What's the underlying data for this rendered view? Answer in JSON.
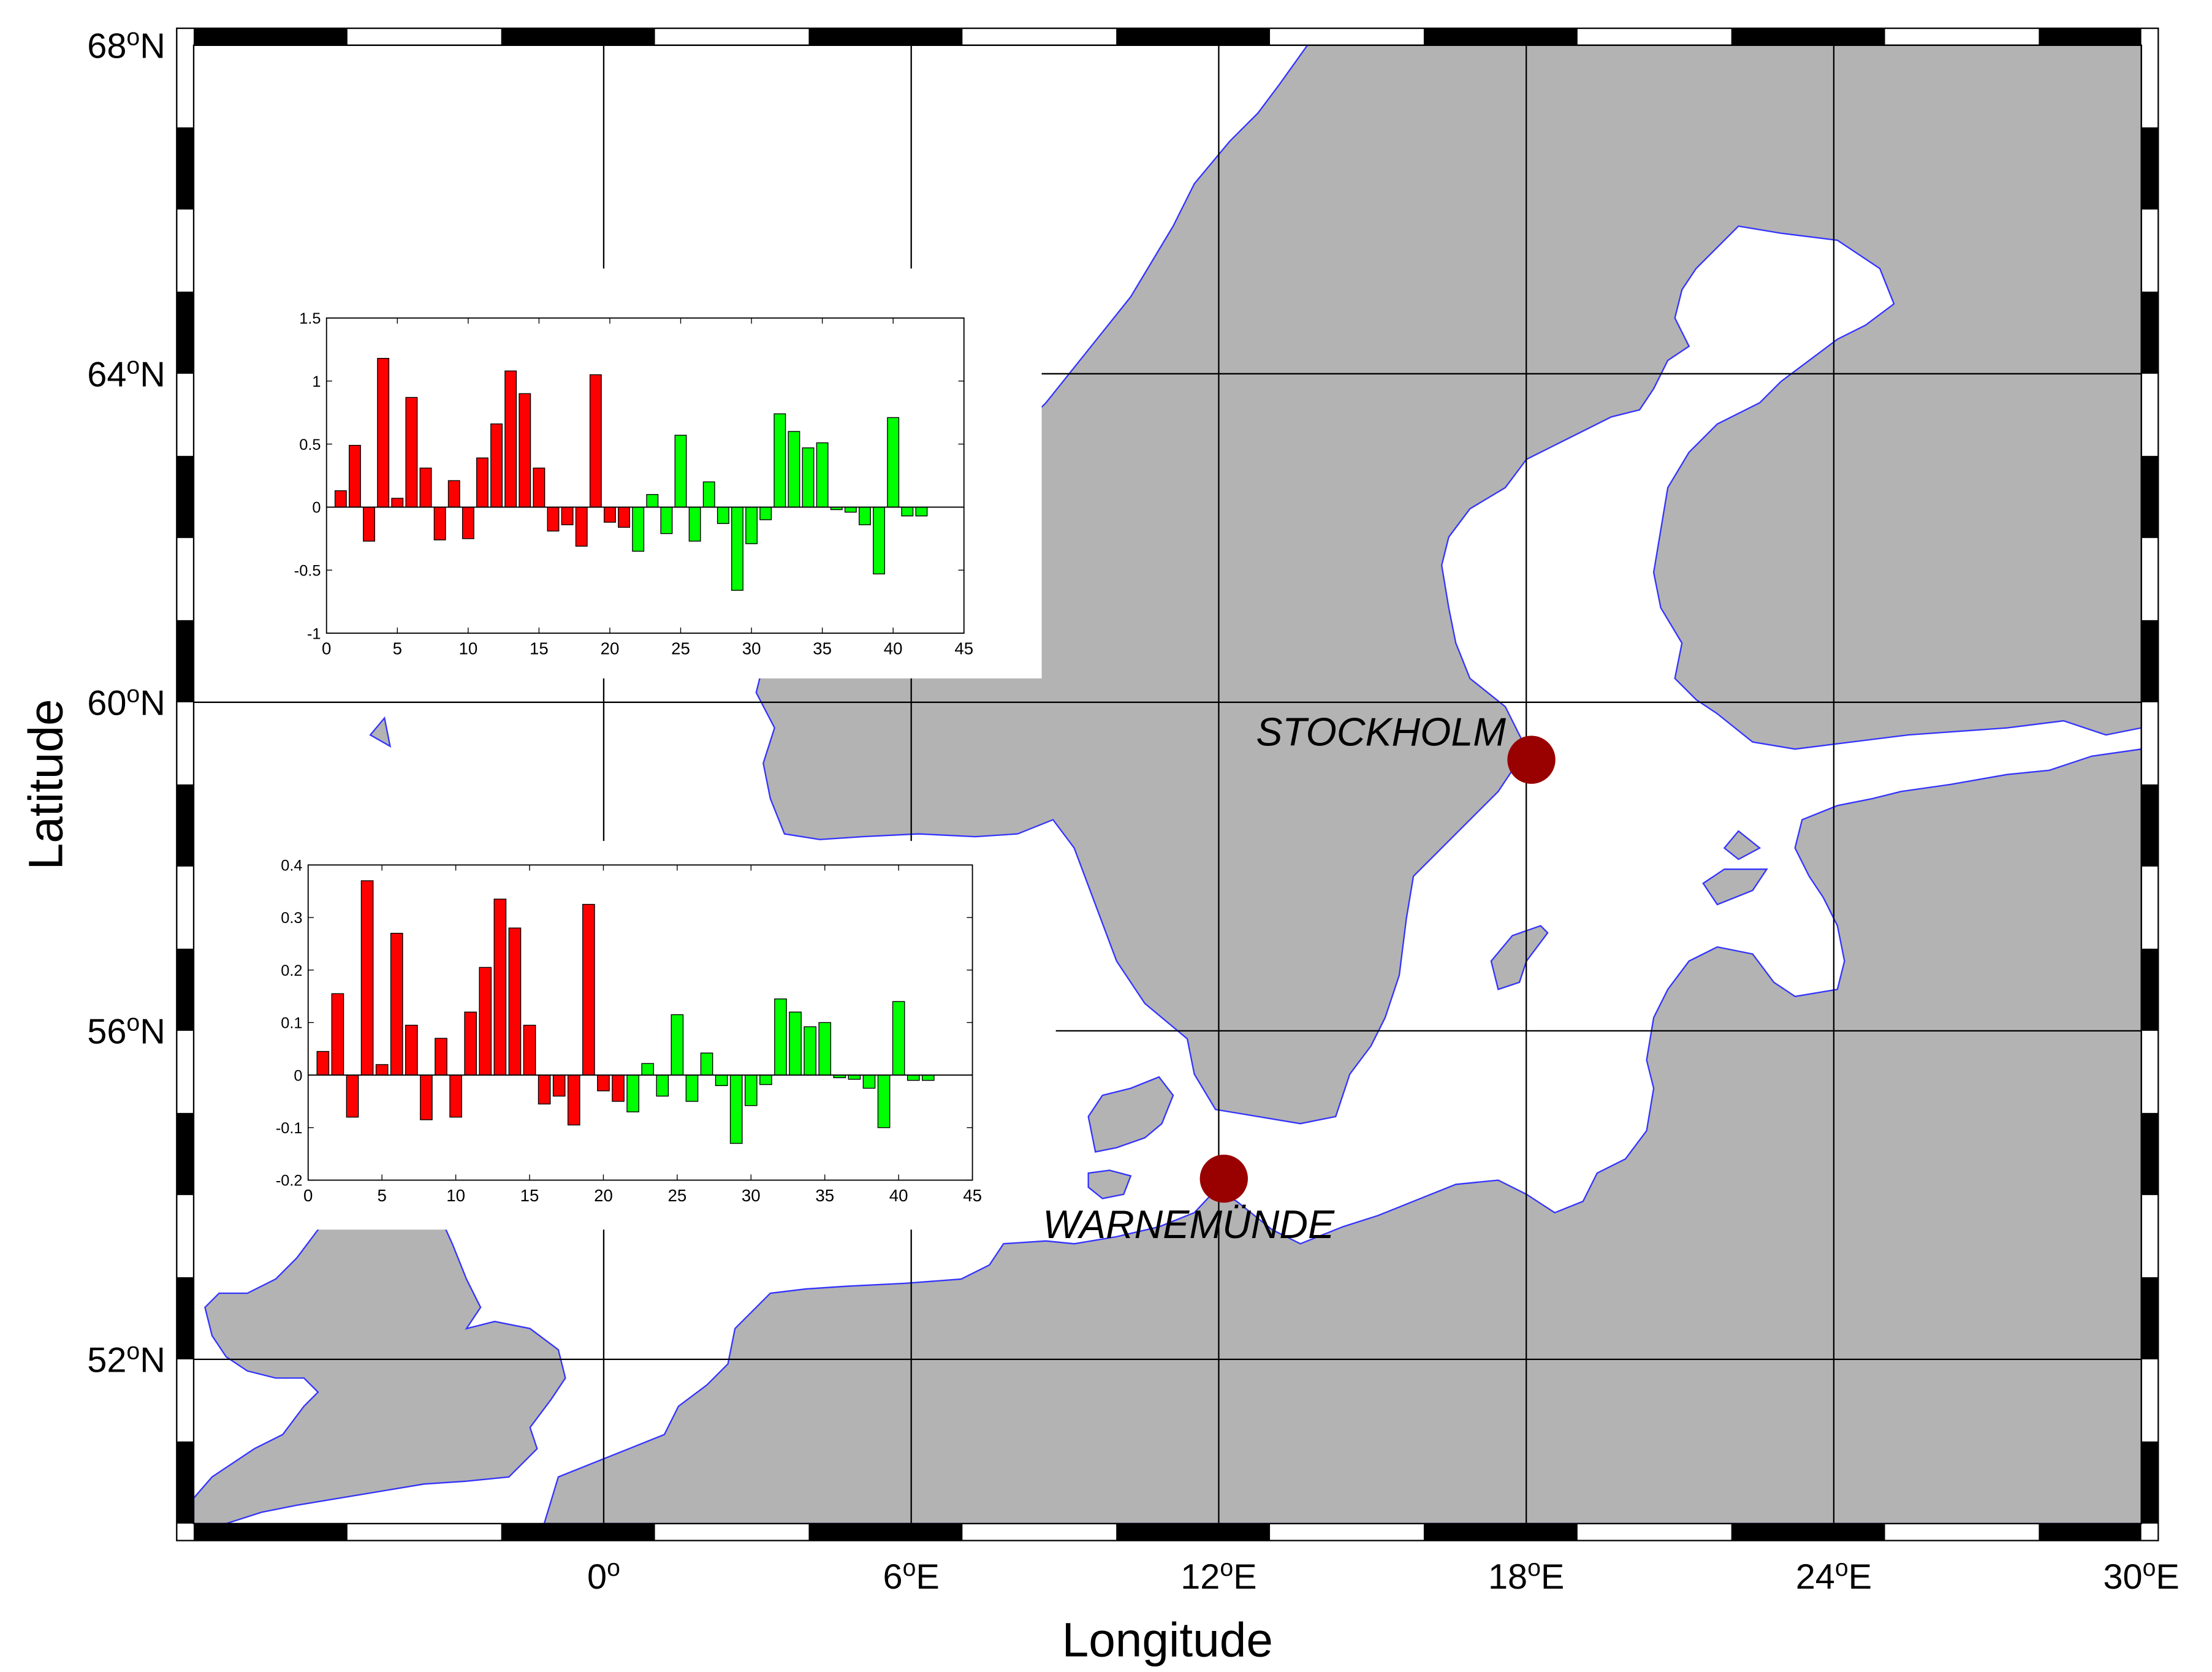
{
  "map": {
    "x_axis_label": "Longitude",
    "y_axis_label": "Latitude",
    "lon_range": [
      -8,
      30
    ],
    "lat_range": [
      50,
      68
    ],
    "lon_ticks": [
      {
        "value": 0,
        "label": "0",
        "sup": "o",
        "suffix": ""
      },
      {
        "value": 6,
        "label": "6",
        "sup": "o",
        "suffix": "E"
      },
      {
        "value": 12,
        "label": "12",
        "sup": "o",
        "suffix": "E"
      },
      {
        "value": 18,
        "label": "18",
        "sup": "o",
        "suffix": "E"
      },
      {
        "value": 24,
        "label": "24",
        "sup": "o",
        "suffix": "E"
      },
      {
        "value": 30,
        "label": "30",
        "sup": "o",
        "suffix": "E"
      }
    ],
    "lat_ticks": [
      {
        "value": 52,
        "label": "52",
        "sup": "o",
        "suffix": "N"
      },
      {
        "value": 56,
        "label": "56",
        "sup": "o",
        "suffix": "N"
      },
      {
        "value": 60,
        "label": "60",
        "sup": "o",
        "suffix": "N"
      },
      {
        "value": 64,
        "label": "64",
        "sup": "o",
        "suffix": "N"
      },
      {
        "value": 68,
        "label": "68",
        "sup": "o",
        "suffix": "N"
      }
    ],
    "stations": [
      {
        "name": "STOCKHOLM",
        "lon": 18.1,
        "lat": 59.3
      },
      {
        "name": "WARNEMÜNDE",
        "lon": 12.1,
        "lat": 54.2
      }
    ],
    "colors": {
      "land": "#b3b3b3",
      "coast": "#3333ff",
      "station": "#990000",
      "sea": "#ffffff"
    }
  },
  "chart_data": [
    {
      "type": "bar",
      "station": "STOCKHOLM",
      "x": [
        1,
        2,
        3,
        4,
        5,
        6,
        7,
        8,
        9,
        10,
        11,
        12,
        13,
        14,
        15,
        16,
        17,
        18,
        19,
        20,
        21,
        22,
        23,
        24,
        25,
        26,
        27,
        28,
        29,
        30,
        31,
        32,
        33,
        34,
        35,
        36,
        37,
        38,
        39,
        40,
        41,
        42
      ],
      "values": [
        0.13,
        0.49,
        -0.27,
        1.18,
        0.07,
        0.87,
        0.31,
        -0.26,
        0.21,
        -0.25,
        0.39,
        0.66,
        1.08,
        0.9,
        0.31,
        -0.19,
        -0.14,
        -0.31,
        1.05,
        -0.12,
        -0.16,
        -0.35,
        0.1,
        -0.21,
        0.57,
        -0.27,
        0.2,
        -0.13,
        -0.66,
        -0.29,
        -0.1,
        0.74,
        0.6,
        0.47,
        0.51,
        -0.02,
        -0.04,
        -0.14,
        -0.53,
        0.71,
        -0.07,
        -0.07
      ],
      "colors": [
        "#ff0000",
        "#ff0000",
        "#ff0000",
        "#ff0000",
        "#ff0000",
        "#ff0000",
        "#ff0000",
        "#ff0000",
        "#ff0000",
        "#ff0000",
        "#ff0000",
        "#ff0000",
        "#ff0000",
        "#ff0000",
        "#ff0000",
        "#ff0000",
        "#ff0000",
        "#ff0000",
        "#ff0000",
        "#ff0000",
        "#ff0000",
        "#00ff00",
        "#00ff00",
        "#00ff00",
        "#00ff00",
        "#00ff00",
        "#00ff00",
        "#00ff00",
        "#00ff00",
        "#00ff00",
        "#00ff00",
        "#00ff00",
        "#00ff00",
        "#00ff00",
        "#00ff00",
        "#00ff00",
        "#00ff00",
        "#00ff00",
        "#00ff00",
        "#00ff00",
        "#00ff00",
        "#00ff00"
      ],
      "xlim": [
        0,
        45
      ],
      "ylim": [
        -1,
        1.5
      ],
      "xticks": [
        0,
        5,
        10,
        15,
        20,
        25,
        30,
        35,
        40,
        45
      ],
      "yticks": [
        -1,
        -0.5,
        0,
        0.5,
        1,
        1.5
      ],
      "ytick_labels": [
        "-1",
        "-0.5",
        "0",
        "0.5",
        "1",
        "1.5"
      ],
      "grid": false
    },
    {
      "type": "bar",
      "station": "WARNEMÜNDE",
      "x": [
        1,
        2,
        3,
        4,
        5,
        6,
        7,
        8,
        9,
        10,
        11,
        12,
        13,
        14,
        15,
        16,
        17,
        18,
        19,
        20,
        21,
        22,
        23,
        24,
        25,
        26,
        27,
        28,
        29,
        30,
        31,
        32,
        33,
        34,
        35,
        36,
        37,
        38,
        39,
        40,
        41,
        42
      ],
      "values": [
        0.045,
        0.155,
        -0.08,
        0.37,
        0.02,
        0.27,
        0.095,
        -0.085,
        0.07,
        -0.08,
        0.12,
        0.205,
        0.335,
        0.28,
        0.095,
        -0.055,
        -0.04,
        -0.095,
        0.325,
        -0.03,
        -0.05,
        -0.07,
        0.022,
        -0.04,
        0.115,
        -0.05,
        0.042,
        -0.02,
        -0.13,
        -0.058,
        -0.018,
        0.145,
        0.12,
        0.092,
        0.1,
        -0.005,
        -0.008,
        -0.025,
        -0.1,
        0.14,
        -0.01,
        -0.01
      ],
      "colors": [
        "#ff0000",
        "#ff0000",
        "#ff0000",
        "#ff0000",
        "#ff0000",
        "#ff0000",
        "#ff0000",
        "#ff0000",
        "#ff0000",
        "#ff0000",
        "#ff0000",
        "#ff0000",
        "#ff0000",
        "#ff0000",
        "#ff0000",
        "#ff0000",
        "#ff0000",
        "#ff0000",
        "#ff0000",
        "#ff0000",
        "#ff0000",
        "#00ff00",
        "#00ff00",
        "#00ff00",
        "#00ff00",
        "#00ff00",
        "#00ff00",
        "#00ff00",
        "#00ff00",
        "#00ff00",
        "#00ff00",
        "#00ff00",
        "#00ff00",
        "#00ff00",
        "#00ff00",
        "#00ff00",
        "#00ff00",
        "#00ff00",
        "#00ff00",
        "#00ff00",
        "#00ff00",
        "#00ff00"
      ],
      "xlim": [
        0,
        45
      ],
      "ylim": [
        -0.2,
        0.4
      ],
      "xticks": [
        0,
        5,
        10,
        15,
        20,
        25,
        30,
        35,
        40,
        45
      ],
      "yticks": [
        -0.2,
        -0.1,
        0,
        0.1,
        0.2,
        0.3,
        0.4
      ],
      "ytick_labels": [
        "-0.2",
        "-0.1",
        "0",
        "0.1",
        "0.2",
        "0.3",
        "0.4"
      ],
      "grid": false
    }
  ]
}
